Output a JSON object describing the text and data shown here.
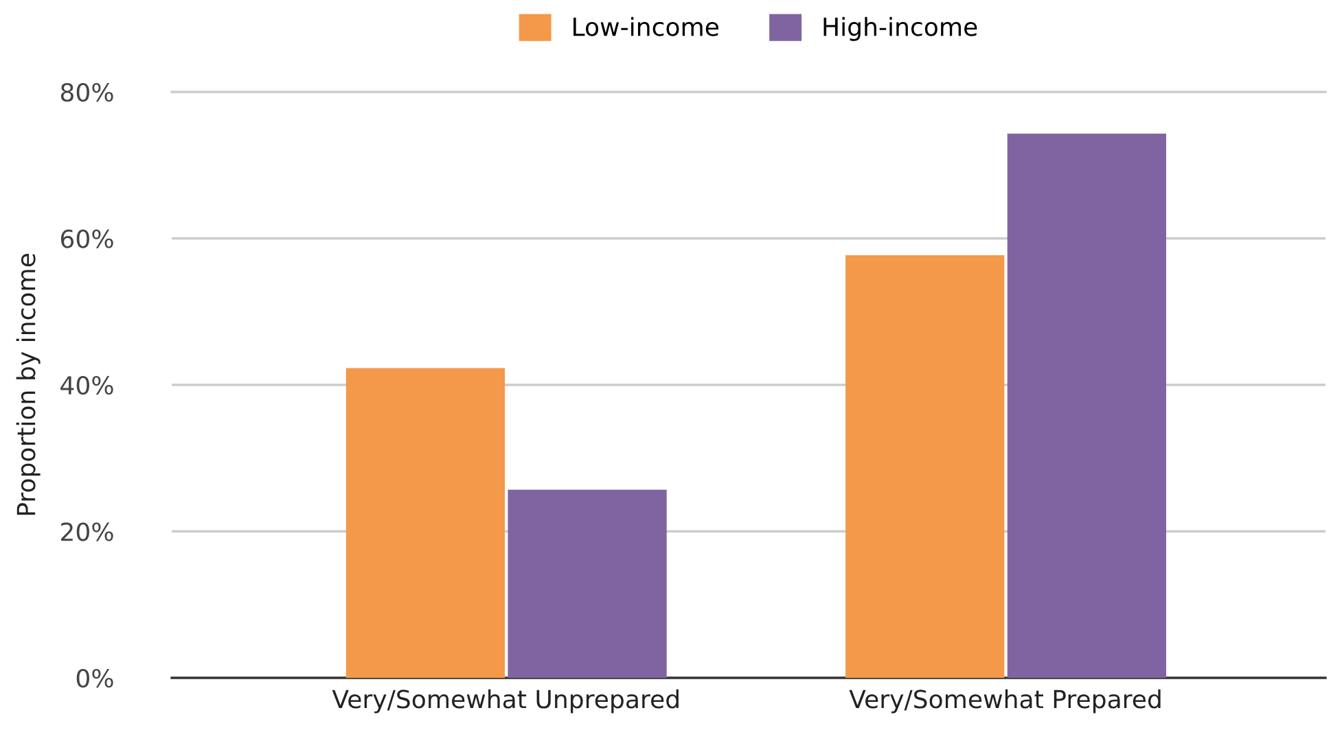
{
  "chart_data": {
    "type": "bar",
    "ylabel": "Proportion by income",
    "categories": [
      "Very/Somewhat Unprepared",
      "Very/Somewhat Prepared"
    ],
    "series": [
      {
        "name": "Low-income",
        "color": "#f4984a",
        "values": [
          42.3,
          57.7
        ]
      },
      {
        "name": "High-income",
        "color": "#8064a2",
        "values": [
          25.7,
          74.3
        ]
      }
    ],
    "ylim": [
      0,
      80
    ],
    "yticks": [
      {
        "value": 0,
        "label": "0%"
      },
      {
        "value": 20,
        "label": "20%"
      },
      {
        "value": 40,
        "label": "40%"
      },
      {
        "value": 60,
        "label": "60%"
      },
      {
        "value": 80,
        "label": "80%"
      }
    ],
    "grid": "y",
    "legend": "top"
  }
}
